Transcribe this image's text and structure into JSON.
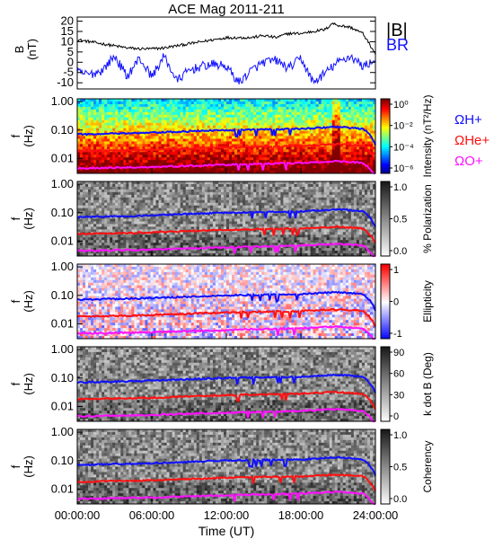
{
  "title": "ACE Mag 2011-211",
  "xlabel": "Time (UT)",
  "x_ticks": [
    "00:00:00",
    "06:00:00",
    "12:00:00",
    "18:00:00",
    "24:00:00"
  ],
  "colors": {
    "black": "#000000",
    "blue": "#1010ff",
    "red": "#ff1010",
    "magenta": "#ff10ff"
  },
  "chart_data": [
    {
      "type": "line",
      "panel": "B",
      "ylabel": "B",
      "yunit": "(nT)",
      "yticks": [
        "20",
        "15",
        "10",
        "5",
        "0",
        "-5",
        "-10"
      ],
      "ylim": [
        -13,
        22
      ],
      "x_unit": "hours UT",
      "xlim": [
        0,
        24
      ],
      "series": [
        {
          "name": "|B|",
          "color": "#000000",
          "x": [
            0,
            1,
            2,
            3,
            4,
            5,
            6,
            7,
            8,
            9,
            10,
            11,
            12,
            13,
            14,
            15,
            16,
            17,
            18,
            19,
            20,
            20.5,
            21,
            22,
            23,
            23.5,
            24
          ],
          "values": [
            11,
            10,
            9,
            8,
            7,
            6.5,
            6.5,
            7,
            8,
            9,
            10,
            11,
            12,
            12,
            12,
            13,
            12,
            14,
            14,
            15,
            16,
            19,
            18,
            17,
            14,
            9,
            4
          ]
        },
        {
          "name": "B_R",
          "color": "#1010ff",
          "x": [
            0,
            1,
            2,
            3,
            4,
            5,
            6,
            7,
            8,
            9,
            10,
            11,
            12,
            13,
            14,
            15,
            16,
            17,
            18,
            19,
            20,
            21,
            22,
            23,
            24
          ],
          "values": [
            -5,
            -6,
            -4,
            3,
            -7,
            2,
            -7,
            3,
            -9,
            -4,
            -2,
            -1,
            -2,
            -10,
            -4,
            0,
            1,
            -3,
            2,
            -10,
            -5,
            0,
            3,
            -2,
            1
          ]
        }
      ]
    },
    {
      "type": "heatmap",
      "panel": "Intensity",
      "ylabel": "f",
      "yunit": "(Hz)",
      "yscale": "log",
      "ylim": [
        0.003,
        1.0
      ],
      "yticks": [
        "1.00",
        "0.10",
        "0.01"
      ],
      "colorbar_label": "Intensity (nT²/Hz)",
      "colorbar_ticks": [
        "10⁰",
        "10⁻²",
        "10⁻⁴",
        "10⁻⁶"
      ],
      "series": [
        {
          "name": "Ω_H+",
          "color": "#1010ff",
          "x": [
            0,
            6,
            12,
            18,
            21,
            23,
            24
          ],
          "values": [
            0.07,
            0.08,
            0.1,
            0.11,
            0.13,
            0.11,
            0.03
          ]
        },
        {
          "name": "Ω_He+",
          "color": "#ff1010",
          "x": [
            0,
            6,
            12,
            18,
            21,
            23,
            24
          ],
          "values": [
            0.018,
            0.02,
            0.025,
            0.028,
            0.032,
            0.028,
            0.008
          ]
        },
        {
          "name": "Ω_O+",
          "color": "#ff10ff",
          "x": [
            0,
            6,
            12,
            18,
            21,
            23,
            24
          ],
          "values": [
            0.0045,
            0.005,
            0.006,
            0.007,
            0.008,
            0.007,
            0.002
          ]
        }
      ]
    },
    {
      "type": "heatmap",
      "panel": "Polarization",
      "ylabel": "f",
      "yunit": "(Hz)",
      "yscale": "log",
      "yticks": [
        "1.00",
        "0.10",
        "0.01"
      ],
      "colorbar_label": "% Polarization",
      "colorbar_ticks": [
        "1.0",
        "0.5",
        "0.0"
      ]
    },
    {
      "type": "heatmap",
      "panel": "Ellipticity",
      "ylabel": "f",
      "yunit": "(Hz)",
      "yscale": "log",
      "yticks": [
        "1.00",
        "0.10",
        "0.01"
      ],
      "colorbar_label": "Ellipticity",
      "colorbar_ticks": [
        "1",
        "0",
        "-1"
      ]
    },
    {
      "type": "heatmap",
      "panel": "k dot B",
      "ylabel": "f",
      "yunit": "(Hz)",
      "yscale": "log",
      "yticks": [
        "1.00",
        "0.10",
        "0.01"
      ],
      "colorbar_label": "k dot B (Deg)",
      "colorbar_ticks": [
        "90",
        "60",
        "30",
        "0"
      ]
    },
    {
      "type": "heatmap",
      "panel": "Coherency",
      "ylabel": "f",
      "yunit": "(Hz)",
      "yscale": "log",
      "yticks": [
        "1.00",
        "0.10",
        "0.01"
      ],
      "colorbar_label": "Coherency",
      "colorbar_ticks": [
        "1.0",
        "0.5",
        "0.0"
      ]
    }
  ]
}
